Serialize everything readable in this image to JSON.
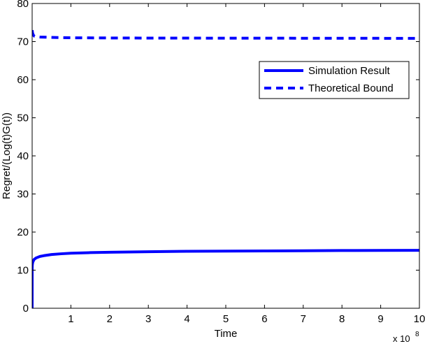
{
  "chart_data": {
    "type": "line",
    "title": "",
    "xlabel": "Time",
    "ylabel": "Regret/(Log(t)G(t))",
    "x_multiplier_label": "x 10",
    "x_multiplier_exponent": "8",
    "xlim": [
      0,
      10
    ],
    "ylim": [
      0,
      80
    ],
    "xticks": [
      1,
      2,
      3,
      4,
      5,
      6,
      7,
      8,
      9,
      10
    ],
    "yticks": [
      0,
      10,
      20,
      30,
      40,
      50,
      60,
      70,
      80
    ],
    "grid": false,
    "legend_position": "top-right",
    "series": [
      {
        "name": "Simulation Result",
        "style": "solid",
        "color": "#0000ff",
        "x": [
          0.0,
          0.001,
          0.004,
          0.01,
          0.02,
          0.05,
          0.1,
          0.2,
          0.3,
          0.5,
          0.75,
          1,
          1.5,
          2,
          3,
          4,
          5,
          6,
          7,
          8,
          9,
          10
        ],
        "y": [
          0,
          10.5,
          11.3,
          11.8,
          12.2,
          12.8,
          13.2,
          13.6,
          13.8,
          14.1,
          14.3,
          14.45,
          14.6,
          14.7,
          14.85,
          14.95,
          15.0,
          15.05,
          15.1,
          15.15,
          15.18,
          15.2
        ]
      },
      {
        "name": "Theoretical Bound",
        "style": "dashed",
        "color": "#0000ff",
        "x": [
          0.0,
          0.01,
          0.03,
          0.06,
          0.1,
          0.2,
          0.5,
          1,
          2,
          3,
          5,
          7,
          10
        ],
        "y": [
          73.0,
          72.3,
          71.7,
          71.4,
          71.3,
          71.2,
          71.1,
          71.0,
          70.95,
          70.92,
          70.9,
          70.88,
          70.85
        ]
      }
    ]
  }
}
